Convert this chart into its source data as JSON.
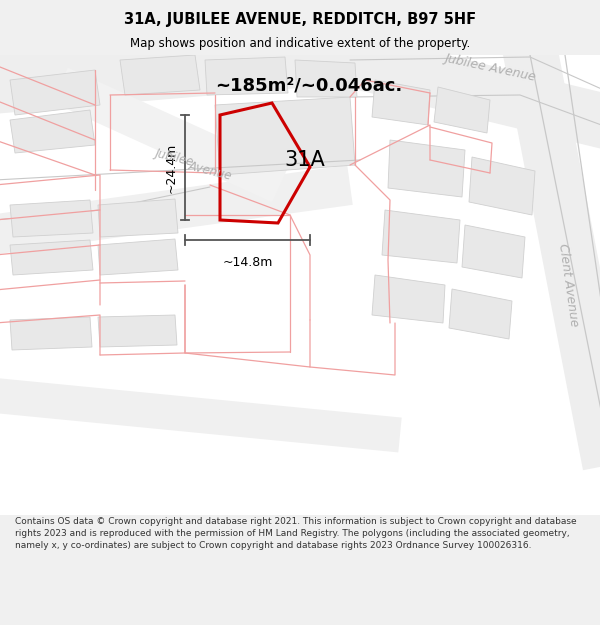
{
  "title": "31A, JUBILEE AVENUE, REDDITCH, B97 5HF",
  "subtitle": "Map shows position and indicative extent of the property.",
  "area_text": "~185m²/~0.046ac.",
  "label_31A": "31A",
  "dim_height": "~24.4m",
  "dim_width": "~14.8m",
  "footer": "Contains OS data © Crown copyright and database right 2021. This information is subject to Crown copyright and database rights 2023 and is reproduced with the permission of HM Land Registry. The polygons (including the associated geometry, namely x, y co-ordinates) are subject to Crown copyright and database rights 2023 Ordnance Survey 100026316.",
  "bg_color": "#f0f0f0",
  "map_bg": "#ffffff",
  "plot_color": "#cc0000",
  "road_label_color": "#b0b0b0",
  "dim_color": "#555555",
  "title_color": "#000000",
  "footer_color": "#333333",
  "building_fill": "#e8e8e8",
  "building_edge": "#d0d0d0",
  "pink_line": "#f0a0a0",
  "gray_line": "#c8c8c8"
}
